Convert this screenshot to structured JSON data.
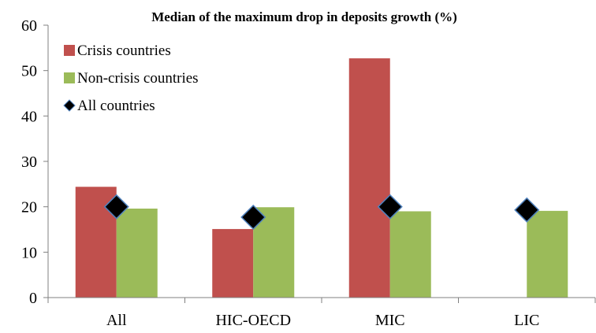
{
  "chart_data": {
    "type": "bar",
    "title": "Median of the maximum drop in deposits growth (%)",
    "xlabel": "",
    "ylabel": "",
    "categories": [
      "All",
      "HIC-OECD",
      "MIC",
      "LIC"
    ],
    "ylim": [
      0,
      60
    ],
    "yticks": [
      "0",
      "10",
      "20",
      "30",
      "40",
      "50",
      "60"
    ],
    "grid": false,
    "legend_position": "top-left",
    "series": [
      {
        "name": "Crisis countries",
        "kind": "bar",
        "color": "#c0504d",
        "values": [
          24.4,
          15.1,
          52.7,
          null
        ]
      },
      {
        "name": "Non-crisis countries",
        "kind": "bar",
        "color": "#9bbb59",
        "values": [
          19.6,
          19.9,
          19.0,
          19.1
        ]
      },
      {
        "name": "All countries",
        "kind": "marker",
        "marker": "diamond",
        "color": "#000000",
        "edge_color": "#4f81bd",
        "values": [
          20.0,
          17.7,
          20.0,
          19.3
        ]
      }
    ]
  }
}
